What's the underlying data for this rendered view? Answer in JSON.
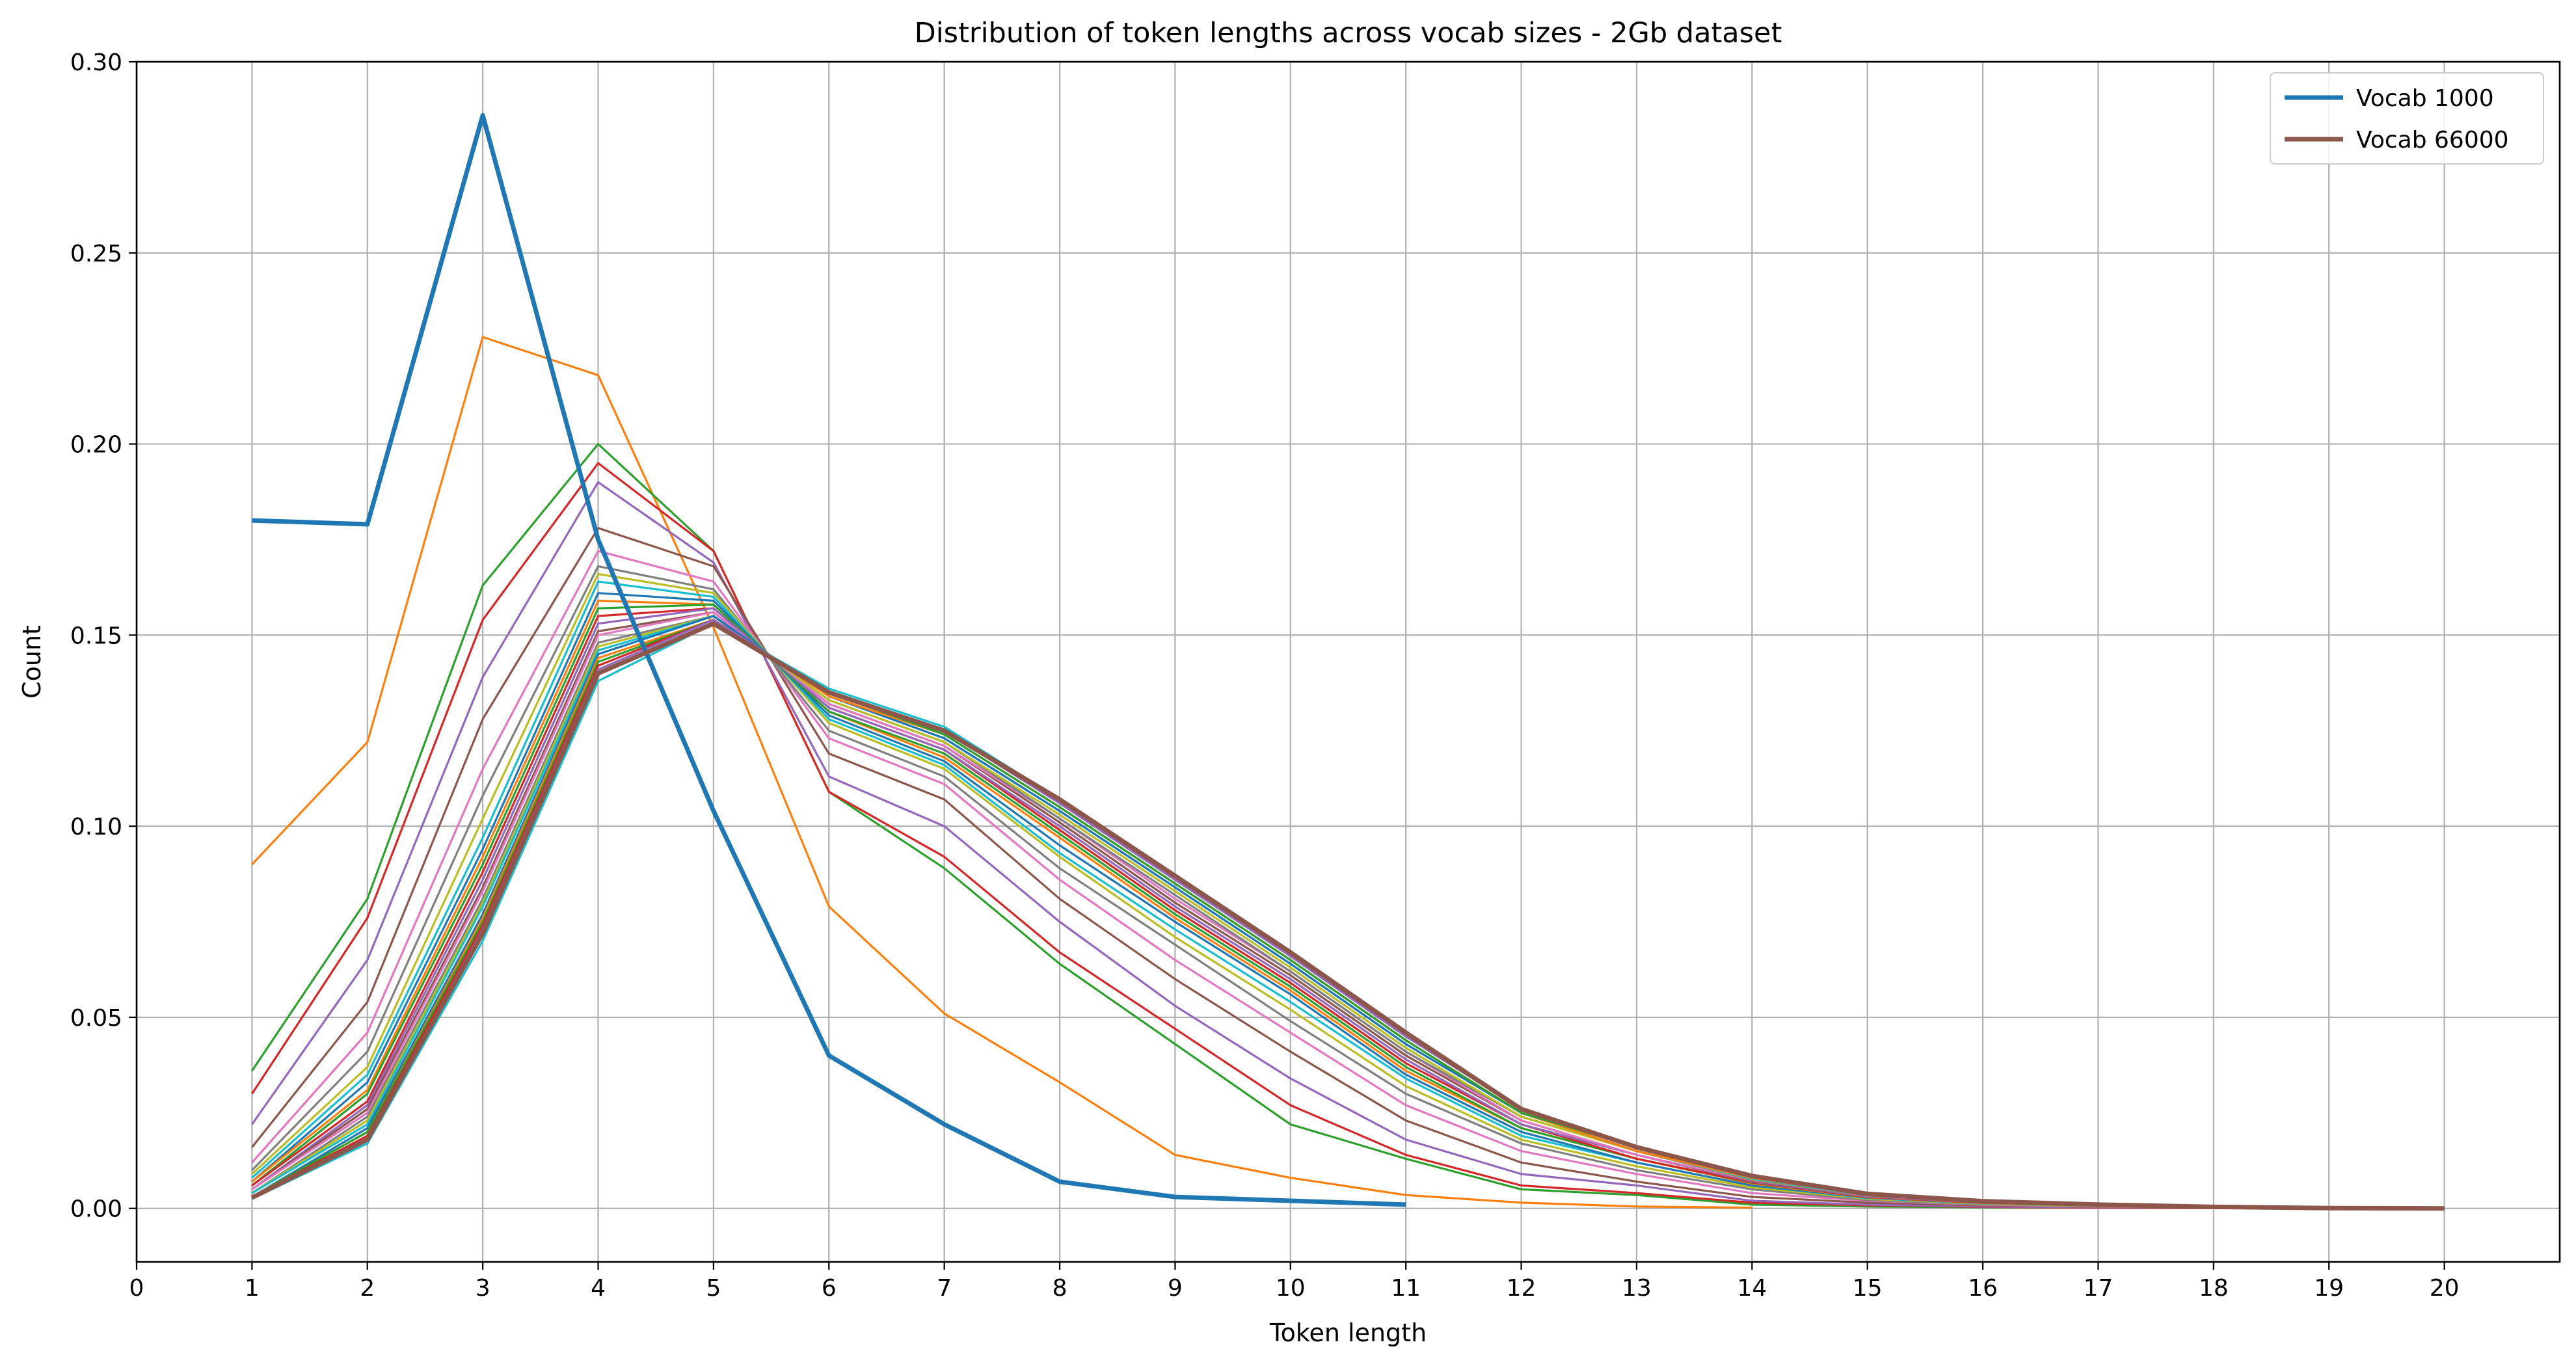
{
  "chart_data": {
    "type": "line",
    "title": "Distribution of token lengths across vocab sizes - 2Gb dataset",
    "xlabel": "Token length",
    "ylabel": "Count",
    "xlim": [
      0,
      21
    ],
    "ylim": [
      -0.014,
      0.3
    ],
    "xticks": [
      0,
      1,
      2,
      3,
      4,
      5,
      6,
      7,
      8,
      9,
      10,
      11,
      12,
      13,
      14,
      15,
      16,
      17,
      18,
      19,
      20
    ],
    "yticks": [
      0.0,
      0.05,
      0.1,
      0.15,
      0.2,
      0.25,
      0.3
    ],
    "ytick_labels": [
      "0.00",
      "0.05",
      "0.10",
      "0.15",
      "0.20",
      "0.25",
      "0.30"
    ],
    "grid": true,
    "legend_position": "top-right",
    "legend": [
      "Vocab 1000",
      "Vocab 66000"
    ],
    "series": [
      {
        "name": "Vocab 1000",
        "color": "#1f77b4",
        "emphasis": true,
        "x": [
          1,
          2,
          3,
          4,
          5,
          6,
          7,
          8,
          9,
          10,
          11
        ],
        "values": [
          0.18,
          0.179,
          0.286,
          0.175,
          0.104,
          0.04,
          0.022,
          0.007,
          0.003,
          0.002,
          0.001
        ]
      },
      {
        "color": "#ff7f0e",
        "x": [
          1,
          2,
          3,
          4,
          5,
          6,
          7,
          8,
          9,
          10,
          11,
          12,
          13,
          14
        ],
        "values": [
          0.09,
          0.122,
          0.228,
          0.218,
          0.152,
          0.079,
          0.051,
          0.033,
          0.014,
          0.008,
          0.0035,
          0.0015,
          0.0005,
          0.0002
        ]
      },
      {
        "color": "#2ca02c",
        "x": [
          1,
          2,
          3,
          4,
          5,
          6,
          7,
          8,
          9,
          10,
          11,
          12,
          13,
          14,
          15,
          16,
          17,
          18,
          19,
          20
        ],
        "values": [
          0.036,
          0.081,
          0.163,
          0.2,
          0.172,
          0.109,
          0.089,
          0.064,
          0.043,
          0.022,
          0.013,
          0.005,
          0.0035,
          0.001,
          0.0005,
          0.0003,
          0.0002,
          0.0001,
          0.0001,
          0.0
        ]
      },
      {
        "color": "#d62728",
        "x": [
          1,
          2,
          3,
          4,
          5,
          6,
          7,
          8,
          9,
          10,
          11,
          12,
          13,
          14,
          15,
          16,
          17,
          18,
          19,
          20
        ],
        "values": [
          0.03,
          0.076,
          0.154,
          0.195,
          0.172,
          0.109,
          0.092,
          0.067,
          0.047,
          0.027,
          0.014,
          0.006,
          0.004,
          0.0015,
          0.0008,
          0.0004,
          0.0002,
          0.0001,
          0.0001,
          0.0
        ]
      },
      {
        "color": "#9467bd",
        "x": [
          1,
          2,
          3,
          4,
          5,
          6,
          7,
          8,
          9,
          10,
          11,
          12,
          13,
          14,
          15,
          16,
          17,
          18,
          19,
          20
        ],
        "values": [
          0.022,
          0.065,
          0.139,
          0.19,
          0.169,
          0.113,
          0.1,
          0.075,
          0.053,
          0.034,
          0.018,
          0.009,
          0.006,
          0.002,
          0.001,
          0.0005,
          0.0003,
          0.0002,
          0.0001,
          0.0
        ]
      },
      {
        "color": "#8c564b",
        "x": [
          1,
          2,
          3,
          4,
          5,
          6,
          7,
          8,
          9,
          10,
          11,
          12,
          13,
          14,
          15,
          16,
          17,
          18,
          19,
          20
        ],
        "values": [
          0.016,
          0.054,
          0.128,
          0.178,
          0.168,
          0.119,
          0.107,
          0.081,
          0.06,
          0.041,
          0.023,
          0.012,
          0.007,
          0.003,
          0.0015,
          0.0008,
          0.0004,
          0.0002,
          0.0001,
          0.0
        ]
      },
      {
        "color": "#e377c2",
        "x": [
          1,
          2,
          3,
          4,
          5,
          6,
          7,
          8,
          9,
          10,
          11,
          12,
          13,
          14,
          15,
          16,
          17,
          18,
          19,
          20
        ],
        "values": [
          0.012,
          0.046,
          0.115,
          0.172,
          0.164,
          0.123,
          0.111,
          0.086,
          0.065,
          0.046,
          0.027,
          0.015,
          0.009,
          0.004,
          0.002,
          0.001,
          0.0005,
          0.0003,
          0.0001,
          0.0
        ]
      },
      {
        "color": "#7f7f7f",
        "x": [
          1,
          2,
          3,
          4,
          5,
          6,
          7,
          8,
          9,
          10,
          11,
          12,
          13,
          14,
          15,
          16,
          17,
          18,
          19,
          20
        ],
        "values": [
          0.01,
          0.041,
          0.108,
          0.168,
          0.162,
          0.125,
          0.113,
          0.089,
          0.069,
          0.049,
          0.03,
          0.017,
          0.01,
          0.005,
          0.0022,
          0.0011,
          0.0006,
          0.0003,
          0.0001,
          0.0
        ]
      },
      {
        "color": "#bcbd22",
        "x": [
          1,
          2,
          3,
          4,
          5,
          6,
          7,
          8,
          9,
          10,
          11,
          12,
          13,
          14,
          15,
          16,
          17,
          18,
          19,
          20
        ],
        "values": [
          0.009,
          0.037,
          0.102,
          0.166,
          0.161,
          0.127,
          0.115,
          0.092,
          0.071,
          0.052,
          0.032,
          0.018,
          0.011,
          0.0055,
          0.0025,
          0.0012,
          0.0006,
          0.0003,
          0.0001,
          0.0
        ]
      },
      {
        "color": "#17becf",
        "x": [
          1,
          2,
          3,
          4,
          5,
          6,
          7,
          8,
          9,
          10,
          11,
          12,
          13,
          14,
          15,
          16,
          17,
          18,
          19,
          20
        ],
        "values": [
          0.008,
          0.035,
          0.097,
          0.164,
          0.16,
          0.128,
          0.116,
          0.093,
          0.073,
          0.054,
          0.034,
          0.019,
          0.012,
          0.006,
          0.0027,
          0.0013,
          0.0007,
          0.0003,
          0.0001,
          0.0
        ]
      },
      {
        "color": "#1f77b4",
        "x": [
          1,
          2,
          3,
          4,
          5,
          6,
          7,
          8,
          9,
          10,
          11,
          12,
          13,
          14,
          15,
          16,
          17,
          18,
          19,
          20
        ],
        "values": [
          0.007,
          0.033,
          0.094,
          0.161,
          0.159,
          0.129,
          0.117,
          0.095,
          0.075,
          0.056,
          0.035,
          0.02,
          0.012,
          0.006,
          0.0028,
          0.0014,
          0.0007,
          0.0003,
          0.0001,
          0.0
        ]
      },
      {
        "color": "#ff7f0e",
        "x": [
          1,
          2,
          3,
          4,
          5,
          6,
          7,
          8,
          9,
          10,
          11,
          12,
          13,
          14,
          15,
          16,
          17,
          18,
          19,
          20
        ],
        "values": [
          0.007,
          0.031,
          0.092,
          0.159,
          0.158,
          0.13,
          0.118,
          0.097,
          0.076,
          0.057,
          0.036,
          0.021,
          0.013,
          0.0065,
          0.0029,
          0.0014,
          0.0007,
          0.0003,
          0.0001,
          0.0
        ]
      },
      {
        "color": "#2ca02c",
        "x": [
          1,
          2,
          3,
          4,
          5,
          6,
          7,
          8,
          9,
          10,
          11,
          12,
          13,
          14,
          15,
          16,
          17,
          18,
          19,
          20
        ],
        "values": [
          0.006,
          0.03,
          0.09,
          0.157,
          0.158,
          0.13,
          0.119,
          0.098,
          0.077,
          0.058,
          0.037,
          0.021,
          0.013,
          0.0067,
          0.003,
          0.0015,
          0.0008,
          0.0003,
          0.0001,
          0.0
        ]
      },
      {
        "color": "#d62728",
        "x": [
          1,
          2,
          3,
          4,
          5,
          6,
          7,
          8,
          9,
          10,
          11,
          12,
          13,
          14,
          15,
          16,
          17,
          18,
          19,
          20
        ],
        "values": [
          0.006,
          0.028,
          0.088,
          0.155,
          0.157,
          0.131,
          0.12,
          0.099,
          0.078,
          0.059,
          0.038,
          0.022,
          0.013,
          0.0068,
          0.003,
          0.0015,
          0.0008,
          0.0003,
          0.0001,
          0.0
        ]
      },
      {
        "color": "#9467bd",
        "x": [
          1,
          2,
          3,
          4,
          5,
          6,
          7,
          8,
          9,
          10,
          11,
          12,
          13,
          14,
          15,
          16,
          17,
          18,
          19,
          20
        ],
        "values": [
          0.005,
          0.027,
          0.086,
          0.153,
          0.157,
          0.131,
          0.12,
          0.1,
          0.079,
          0.06,
          0.039,
          0.022,
          0.014,
          0.007,
          0.0031,
          0.0016,
          0.0008,
          0.0003,
          0.0001,
          0.0
        ]
      },
      {
        "color": "#8c564b",
        "x": [
          1,
          2,
          3,
          4,
          5,
          6,
          7,
          8,
          9,
          10,
          11,
          12,
          13,
          14,
          15,
          16,
          17,
          18,
          19,
          20
        ],
        "values": [
          0.005,
          0.026,
          0.084,
          0.151,
          0.156,
          0.132,
          0.121,
          0.101,
          0.08,
          0.061,
          0.04,
          0.023,
          0.014,
          0.0072,
          0.0032,
          0.0016,
          0.0008,
          0.0004,
          0.0001,
          0.0
        ]
      },
      {
        "color": "#e377c2",
        "x": [
          1,
          2,
          3,
          4,
          5,
          6,
          7,
          8,
          9,
          10,
          11,
          12,
          13,
          14,
          15,
          16,
          17,
          18,
          19,
          20
        ],
        "values": [
          0.005,
          0.025,
          0.083,
          0.15,
          0.156,
          0.132,
          0.121,
          0.102,
          0.081,
          0.062,
          0.041,
          0.023,
          0.014,
          0.0074,
          0.0033,
          0.0016,
          0.0009,
          0.0004,
          0.0001,
          0.0
        ]
      },
      {
        "color": "#7f7f7f",
        "x": [
          1,
          2,
          3,
          4,
          5,
          6,
          7,
          8,
          9,
          10,
          11,
          12,
          13,
          14,
          15,
          16,
          17,
          18,
          19,
          20
        ],
        "values": [
          0.004,
          0.024,
          0.081,
          0.148,
          0.155,
          0.133,
          0.122,
          0.102,
          0.082,
          0.062,
          0.041,
          0.024,
          0.015,
          0.0075,
          0.0034,
          0.0017,
          0.0009,
          0.0004,
          0.0001,
          0.0
        ]
      },
      {
        "color": "#bcbd22",
        "x": [
          1,
          2,
          3,
          4,
          5,
          6,
          7,
          8,
          9,
          10,
          11,
          12,
          13,
          14,
          15,
          16,
          17,
          18,
          19,
          20
        ],
        "values": [
          0.004,
          0.023,
          0.08,
          0.147,
          0.155,
          0.133,
          0.122,
          0.103,
          0.083,
          0.063,
          0.042,
          0.024,
          0.015,
          0.0077,
          0.0035,
          0.0017,
          0.0009,
          0.0004,
          0.0001,
          0.0
        ]
      },
      {
        "color": "#17becf",
        "x": [
          1,
          2,
          3,
          4,
          5,
          6,
          7,
          8,
          9,
          10,
          11,
          12,
          13,
          14,
          15,
          16,
          17,
          18,
          19,
          20
        ],
        "values": [
          0.004,
          0.022,
          0.079,
          0.146,
          0.155,
          0.134,
          0.123,
          0.104,
          0.084,
          0.064,
          0.043,
          0.025,
          0.015,
          0.0078,
          0.0035,
          0.0017,
          0.0009,
          0.0004,
          0.0001,
          0.0
        ]
      },
      {
        "color": "#1f77b4",
        "x": [
          1,
          2,
          3,
          4,
          5,
          6,
          7,
          8,
          9,
          10,
          11,
          12,
          13,
          14,
          15,
          16,
          17,
          18,
          19,
          20
        ],
        "values": [
          0.003,
          0.021,
          0.077,
          0.145,
          0.155,
          0.134,
          0.123,
          0.104,
          0.084,
          0.064,
          0.043,
          0.025,
          0.015,
          0.008,
          0.0036,
          0.0018,
          0.0009,
          0.0004,
          0.0001,
          0.0
        ]
      },
      {
        "color": "#ff7f0e",
        "x": [
          1,
          2,
          3,
          4,
          5,
          6,
          7,
          8,
          9,
          10,
          11,
          12,
          13,
          14,
          15,
          16,
          17,
          18,
          19,
          20
        ],
        "values": [
          0.003,
          0.02,
          0.076,
          0.144,
          0.154,
          0.134,
          0.124,
          0.105,
          0.085,
          0.065,
          0.044,
          0.025,
          0.015,
          0.008,
          0.0036,
          0.0018,
          0.0009,
          0.0004,
          0.0001,
          0.0
        ]
      },
      {
        "color": "#2ca02c",
        "x": [
          1,
          2,
          3,
          4,
          5,
          6,
          7,
          8,
          9,
          10,
          11,
          12,
          13,
          14,
          15,
          16,
          17,
          18,
          19,
          20
        ],
        "values": [
          0.003,
          0.02,
          0.075,
          0.143,
          0.154,
          0.135,
          0.124,
          0.105,
          0.085,
          0.065,
          0.044,
          0.025,
          0.016,
          0.0082,
          0.0037,
          0.0018,
          0.0009,
          0.0004,
          0.0001,
          0.0
        ]
      },
      {
        "color": "#d62728",
        "x": [
          1,
          2,
          3,
          4,
          5,
          6,
          7,
          8,
          9,
          10,
          11,
          12,
          13,
          14,
          15,
          16,
          17,
          18,
          19,
          20
        ],
        "values": [
          0.003,
          0.019,
          0.074,
          0.142,
          0.154,
          0.135,
          0.125,
          0.106,
          0.086,
          0.066,
          0.045,
          0.026,
          0.016,
          0.0083,
          0.0037,
          0.0018,
          0.001,
          0.0004,
          0.0001,
          0.0
        ]
      },
      {
        "color": "#9467bd",
        "x": [
          1,
          2,
          3,
          4,
          5,
          6,
          7,
          8,
          9,
          10,
          11,
          12,
          13,
          14,
          15,
          16,
          17,
          18,
          19,
          20
        ],
        "values": [
          0.003,
          0.018,
          0.073,
          0.141,
          0.154,
          0.135,
          0.125,
          0.106,
          0.086,
          0.066,
          0.045,
          0.026,
          0.016,
          0.0084,
          0.0038,
          0.0019,
          0.001,
          0.0004,
          0.0001,
          0.0
        ]
      },
      {
        "color": "#8c564b",
        "emphasis": true,
        "x": [
          1,
          2,
          3,
          4,
          5,
          6,
          7,
          8,
          9,
          10,
          11,
          12,
          13,
          14,
          15,
          16,
          17,
          18,
          19,
          20
        ],
        "values": [
          0.0028,
          0.018,
          0.072,
          0.14,
          0.153,
          0.135,
          0.125,
          0.107,
          0.087,
          0.067,
          0.046,
          0.026,
          0.016,
          0.0085,
          0.0038,
          0.0019,
          0.001,
          0.0004,
          0.0001,
          0.0
        ]
      },
      {
        "color": "#17becf",
        "x": [
          1,
          2,
          3,
          4,
          5,
          6,
          7,
          8,
          9,
          10,
          11,
          12,
          13,
          14,
          15,
          16,
          17,
          18,
          19,
          20
        ],
        "values": [
          0.0025,
          0.017,
          0.07,
          0.138,
          0.153,
          0.136,
          0.126,
          0.107,
          0.087,
          0.067,
          0.046,
          0.026,
          0.016,
          0.0086,
          0.0039,
          0.0019,
          0.001,
          0.0004,
          0.0001,
          0.0
        ]
      }
    ]
  }
}
